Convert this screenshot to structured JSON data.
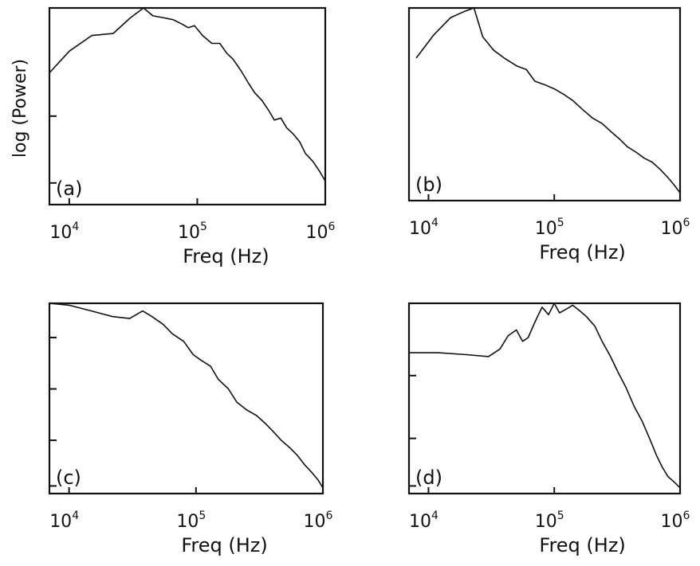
{
  "figure": {
    "ylabel": "log (Power)",
    "xlabel": "Freq (Hz)"
  },
  "chart_data": [
    {
      "type": "line",
      "panel": "(a)",
      "xlabel": "Freq (Hz)",
      "ylabel": "log (Power)",
      "xscale": "log",
      "xlim": [
        7000,
        1000000
      ],
      "xticks": [
        "10^4",
        "10^5",
        "10^6"
      ],
      "yticks_unlabeled": 2,
      "series": [
        {
          "x": [
            7000,
            10000,
            15000,
            22000,
            30000,
            38000,
            45000,
            55000,
            65000,
            75000,
            85000,
            95000,
            110000,
            130000,
            150000,
            170000,
            190000,
            220000,
            250000,
            280000,
            320000,
            360000,
            400000,
            450000,
            500000,
            560000,
            630000,
            700000,
            800000,
            900000,
            1000000
          ],
          "y": [
            0.67,
            0.78,
            0.86,
            0.87,
            0.95,
            1.0,
            0.96,
            0.95,
            0.94,
            0.92,
            0.9,
            0.91,
            0.86,
            0.82,
            0.82,
            0.77,
            0.74,
            0.68,
            0.62,
            0.57,
            0.53,
            0.48,
            0.43,
            0.44,
            0.39,
            0.36,
            0.32,
            0.26,
            0.22,
            0.17,
            0.12
          ]
        }
      ]
    },
    {
      "type": "line",
      "panel": "(b)",
      "xlabel": "Freq (Hz)",
      "xscale": "log",
      "xlim": [
        7000,
        1000000
      ],
      "xticks": [
        "10^4",
        "10^5",
        "10^6"
      ],
      "series": [
        {
          "x": [
            8000,
            11000,
            15000,
            19000,
            23000,
            27000,
            33000,
            40000,
            50000,
            60000,
            70000,
            85000,
            100000,
            120000,
            140000,
            170000,
            200000,
            240000,
            280000,
            330000,
            380000,
            450000,
            520000,
            600000,
            700000,
            800000,
            900000,
            1000000
          ],
          "y": [
            0.74,
            0.86,
            0.95,
            0.98,
            1.0,
            0.85,
            0.78,
            0.74,
            0.7,
            0.68,
            0.62,
            0.6,
            0.58,
            0.55,
            0.52,
            0.47,
            0.43,
            0.4,
            0.36,
            0.32,
            0.28,
            0.25,
            0.22,
            0.2,
            0.16,
            0.12,
            0.08,
            0.04
          ]
        }
      ]
    },
    {
      "type": "line",
      "panel": "(c)",
      "xlabel": "Freq (Hz)",
      "xscale": "log",
      "xlim": [
        7000,
        1000000
      ],
      "xticks": [
        "10^4",
        "10^5",
        "10^6"
      ],
      "yticks_unlabeled": 3,
      "series": [
        {
          "x": [
            7000,
            10000,
            15000,
            22000,
            30000,
            38000,
            45000,
            55000,
            65000,
            80000,
            95000,
            110000,
            130000,
            150000,
            180000,
            210000,
            250000,
            300000,
            350000,
            400000,
            470000,
            550000,
            630000,
            720000,
            820000,
            920000,
            1000000
          ],
          "y": [
            1.0,
            0.99,
            0.96,
            0.93,
            0.92,
            0.96,
            0.93,
            0.89,
            0.84,
            0.8,
            0.73,
            0.7,
            0.67,
            0.6,
            0.55,
            0.48,
            0.44,
            0.41,
            0.37,
            0.33,
            0.28,
            0.24,
            0.2,
            0.15,
            0.11,
            0.07,
            0.03
          ]
        }
      ]
    },
    {
      "type": "line",
      "panel": "(d)",
      "xlabel": "Freq (Hz)",
      "xscale": "log",
      "xlim": [
        7000,
        1000000
      ],
      "xticks": [
        "10^4",
        "10^5",
        "10^6"
      ],
      "series": [
        {
          "x": [
            7000,
            12000,
            20000,
            30000,
            37000,
            43000,
            50000,
            56000,
            62000,
            70000,
            80000,
            90000,
            100000,
            110000,
            125000,
            140000,
            160000,
            180000,
            210000,
            240000,
            280000,
            320000,
            370000,
            430000,
            500000,
            580000,
            650000,
            720000,
            800000,
            900000,
            1000000
          ],
          "y": [
            0.74,
            0.74,
            0.73,
            0.72,
            0.76,
            0.83,
            0.86,
            0.8,
            0.82,
            0.9,
            0.98,
            0.94,
            1.0,
            0.95,
            0.97,
            0.99,
            0.96,
            0.93,
            0.88,
            0.8,
            0.72,
            0.64,
            0.56,
            0.46,
            0.38,
            0.28,
            0.2,
            0.14,
            0.09,
            0.06,
            0.03
          ]
        }
      ]
    }
  ]
}
